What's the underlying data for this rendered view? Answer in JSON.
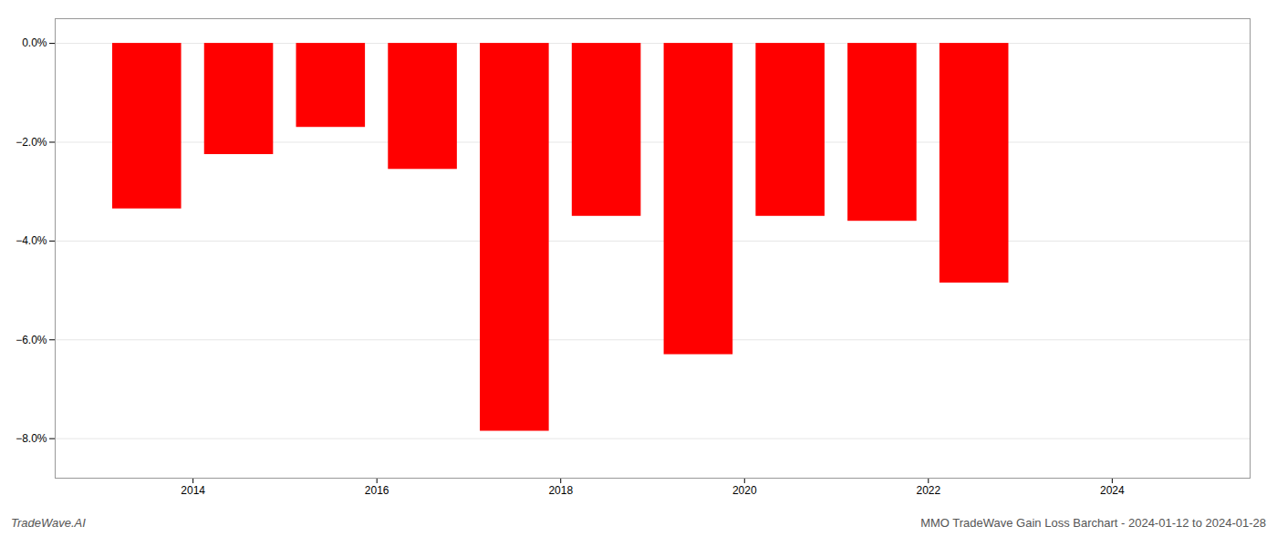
{
  "chart_data": {
    "type": "bar",
    "title": "MMO TradeWave Gain Loss Barchart - 2024-01-12 to 2024-01-28",
    "annotations": [
      "TradeWave.AI"
    ],
    "x": [
      2013.5,
      2014.5,
      2015.5,
      2016.5,
      2017.5,
      2018.5,
      2019.5,
      2020.5,
      2021.5,
      2022.5
    ],
    "values": [
      -3.35,
      -2.25,
      -1.7,
      -2.55,
      -7.85,
      -3.5,
      -6.3,
      -3.5,
      -3.6,
      -4.85
    ],
    "color": "#ff0000",
    "xlim": [
      2012.5,
      2025.5
    ],
    "xticks": [
      2014,
      2016,
      2018,
      2020,
      2022,
      2024
    ],
    "ylim": [
      -8.8,
      0.5
    ],
    "yticks": [
      {
        "value": 0.0,
        "label": "0.0%"
      },
      {
        "value": -2.0,
        "label": "−2.0%"
      },
      {
        "value": -4.0,
        "label": "−4.0%"
      },
      {
        "value": -6.0,
        "label": "−6.0%"
      },
      {
        "value": -8.0,
        "label": "−8.0%"
      }
    ],
    "grid": true
  }
}
